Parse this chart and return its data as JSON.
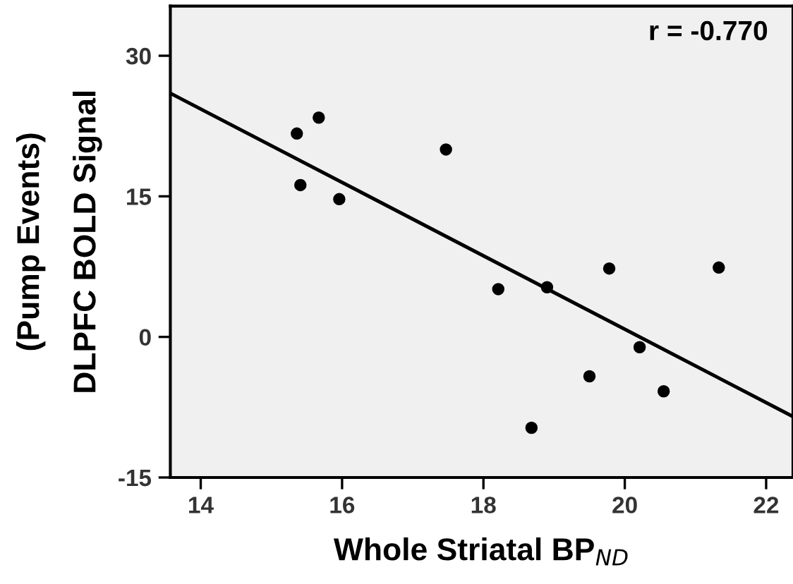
{
  "chart_data": {
    "type": "scatter",
    "xlabel": "Whole Striatal BP$_{ND}$",
    "ylabel": "(Pump Events)\nDLPFC BOLD Signal",
    "annotations": [
      "r = -0.770"
    ],
    "xlim": [
      13.57,
      22.38
    ],
    "ylim": [
      -15,
      35.3
    ],
    "xticks": [
      14,
      16,
      18,
      20,
      22
    ],
    "yticks": [
      -15,
      0,
      15,
      30
    ],
    "grid": false,
    "series": [
      {
        "color": "#000000",
        "marker": "circle",
        "x": [
          15.36,
          15.67,
          15.41,
          15.96,
          17.47,
          19.78,
          21.33,
          18.21,
          18.9,
          20.21,
          19.5,
          20.55,
          18.68
        ],
        "values": [
          21.7,
          23.4,
          16.2,
          14.7,
          20.0,
          7.3,
          7.4,
          5.1,
          5.3,
          -1.1,
          -4.2,
          -5.8,
          -9.7
        ]
      },
      {
        "type": "line",
        "color": "#000000",
        "marker": "none",
        "x": [
          13.57,
          22.38
        ],
        "values": [
          26.0,
          -8.5
        ]
      }
    ]
  }
}
